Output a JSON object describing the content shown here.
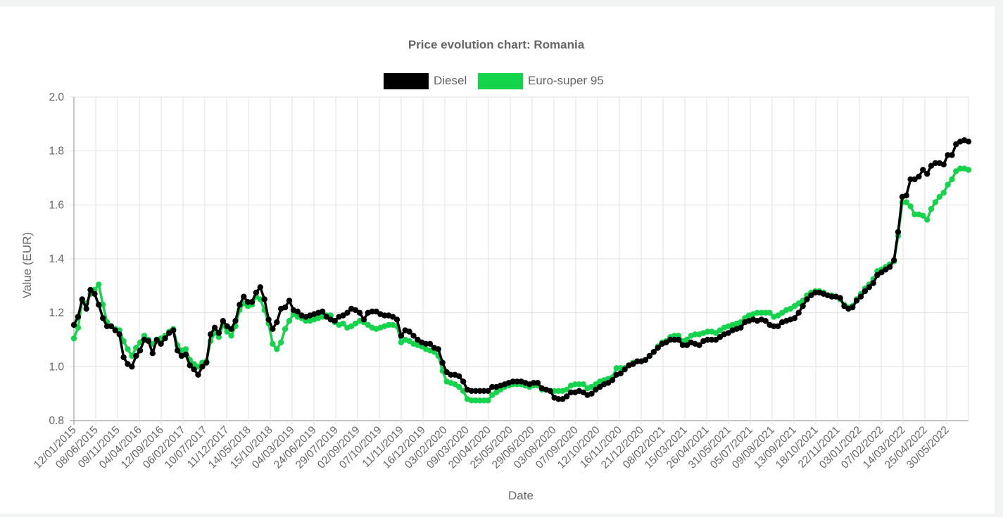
{
  "chart_data": {
    "type": "line",
    "title": "Price evolution chart: Romania",
    "xlabel": "Date",
    "ylabel": "Value (EUR)",
    "ylim": [
      0.8,
      2.0
    ],
    "y_ticks": [
      "0.8",
      "1.0",
      "1.2",
      "1.4",
      "1.6",
      "1.8",
      "2.0"
    ],
    "x_tick_labels": [
      "12/01/2015",
      "08/06/2015",
      "09/11/2015",
      "04/04/2016",
      "12/09/2016",
      "06/02/2017",
      "10/07/2017",
      "11/12/2017",
      "14/05/2018",
      "15/10/2018",
      "04/03/2019",
      "24/06/2019",
      "29/07/2019",
      "02/09/2019",
      "07/10/2019",
      "11/11/2019",
      "16/12/2019",
      "03/02/2020",
      "09/03/2020",
      "20/04/2020",
      "25/05/2020",
      "29/06/2020",
      "03/08/2020",
      "07/09/2020",
      "12/10/2020",
      "16/11/2020",
      "21/12/2020",
      "08/02/2021",
      "15/03/2021",
      "26/04/2021",
      "31/05/2021",
      "05/07/2021",
      "09/08/2021",
      "13/09/2021",
      "18/10/2021",
      "22/11/2021",
      "03/01/2022",
      "07/02/2022",
      "14/03/2022",
      "25/04/2022",
      "30/05/2022"
    ],
    "grid": true,
    "legend_position": "top-center",
    "series": [
      {
        "name": "Diesel",
        "color": "#000000",
        "values": [
          1.155,
          1.185,
          1.25,
          1.215,
          1.285,
          1.27,
          1.23,
          1.18,
          1.15,
          1.15,
          1.135,
          1.12,
          1.035,
          1.01,
          1.0,
          1.04,
          1.06,
          1.1,
          1.095,
          1.05,
          1.1,
          1.085,
          1.105,
          1.125,
          1.135,
          1.06,
          1.04,
          1.045,
          1.005,
          0.99,
          0.97,
          1.0,
          1.015,
          1.12,
          1.145,
          1.125,
          1.17,
          1.15,
          1.14,
          1.17,
          1.23,
          1.26,
          1.24,
          1.24,
          1.275,
          1.295,
          1.25,
          1.175,
          1.14,
          1.165,
          1.215,
          1.22,
          1.245,
          1.21,
          1.205,
          1.19,
          1.185,
          1.19,
          1.195,
          1.2,
          1.205,
          1.185,
          1.175,
          1.17,
          1.185,
          1.19,
          1.2,
          1.215,
          1.21,
          1.2,
          1.175,
          1.2,
          1.205,
          1.205,
          1.195,
          1.19,
          1.19,
          1.185,
          1.175,
          1.115,
          1.135,
          1.13,
          1.115,
          1.1,
          1.09,
          1.085,
          1.085,
          1.07,
          1.065,
          1.015,
          0.98,
          0.97,
          0.97,
          0.965,
          0.945,
          0.915,
          0.91,
          0.91,
          0.91,
          0.91,
          0.91,
          0.925,
          0.925,
          0.93,
          0.935,
          0.94,
          0.945,
          0.945,
          0.945,
          0.94,
          0.935,
          0.94,
          0.94,
          0.92,
          0.915,
          0.91,
          0.885,
          0.88,
          0.88,
          0.89,
          0.905,
          0.905,
          0.91,
          0.905,
          0.895,
          0.9,
          0.915,
          0.925,
          0.935,
          0.94,
          0.95,
          0.97,
          0.975,
          0.99,
          1.005,
          1.01,
          1.02,
          1.02,
          1.025,
          1.04,
          1.055,
          1.07,
          1.085,
          1.09,
          1.1,
          1.1,
          1.1,
          1.08,
          1.08,
          1.09,
          1.085,
          1.08,
          1.095,
          1.1,
          1.1,
          1.1,
          1.11,
          1.12,
          1.125,
          1.135,
          1.14,
          1.145,
          1.165,
          1.17,
          1.175,
          1.17,
          1.175,
          1.17,
          1.155,
          1.15,
          1.15,
          1.165,
          1.17,
          1.175,
          1.18,
          1.2,
          1.225,
          1.25,
          1.265,
          1.275,
          1.275,
          1.27,
          1.265,
          1.26,
          1.26,
          1.255,
          1.225,
          1.215,
          1.22,
          1.245,
          1.26,
          1.28,
          1.295,
          1.31,
          1.34,
          1.35,
          1.36,
          1.37,
          1.395,
          1.5,
          1.63,
          1.635,
          1.695,
          1.695,
          1.705,
          1.73,
          1.715,
          1.745,
          1.755,
          1.755,
          1.75,
          1.785,
          1.785,
          1.825,
          1.835,
          1.84,
          1.835
        ]
      },
      {
        "name": "Euro-super 95",
        "color": "#13d44a",
        "values": [
          1.105,
          1.145,
          1.245,
          1.235,
          1.27,
          1.285,
          1.305,
          1.23,
          1.165,
          1.15,
          1.14,
          1.135,
          1.095,
          1.065,
          1.04,
          1.07,
          1.09,
          1.115,
          1.1,
          1.085,
          1.095,
          1.105,
          1.115,
          1.13,
          1.14,
          1.08,
          1.06,
          1.065,
          1.025,
          1.01,
          1.0,
          1.015,
          1.02,
          1.095,
          1.125,
          1.11,
          1.155,
          1.13,
          1.115,
          1.15,
          1.21,
          1.235,
          1.225,
          1.23,
          1.26,
          1.25,
          1.21,
          1.16,
          1.085,
          1.065,
          1.09,
          1.14,
          1.17,
          1.195,
          1.185,
          1.18,
          1.17,
          1.17,
          1.175,
          1.18,
          1.185,
          1.19,
          1.19,
          1.165,
          1.155,
          1.16,
          1.145,
          1.15,
          1.16,
          1.17,
          1.165,
          1.155,
          1.145,
          1.14,
          1.145,
          1.15,
          1.155,
          1.155,
          1.15,
          1.09,
          1.1,
          1.095,
          1.085,
          1.08,
          1.075,
          1.065,
          1.06,
          1.055,
          1.04,
          0.985,
          0.945,
          0.94,
          0.935,
          0.925,
          0.91,
          0.88,
          0.875,
          0.875,
          0.875,
          0.875,
          0.875,
          0.895,
          0.905,
          0.915,
          0.925,
          0.93,
          0.935,
          0.935,
          0.935,
          0.93,
          0.925,
          0.93,
          0.93,
          0.915,
          0.915,
          0.91,
          0.91,
          0.91,
          0.91,
          0.915,
          0.93,
          0.935,
          0.935,
          0.935,
          0.92,
          0.925,
          0.935,
          0.945,
          0.95,
          0.955,
          0.96,
          0.995,
          0.995,
          0.995,
          1.005,
          1.015,
          1.02,
          1.02,
          1.025,
          1.04,
          1.055,
          1.075,
          1.09,
          1.095,
          1.11,
          1.115,
          1.115,
          1.095,
          1.1,
          1.115,
          1.12,
          1.12,
          1.125,
          1.13,
          1.13,
          1.125,
          1.135,
          1.145,
          1.15,
          1.155,
          1.16,
          1.165,
          1.18,
          1.19,
          1.195,
          1.2,
          1.2,
          1.2,
          1.2,
          1.185,
          1.19,
          1.2,
          1.21,
          1.215,
          1.225,
          1.235,
          1.245,
          1.265,
          1.275,
          1.28,
          1.28,
          1.275,
          1.265,
          1.265,
          1.26,
          1.25,
          1.23,
          1.22,
          1.225,
          1.25,
          1.27,
          1.29,
          1.305,
          1.325,
          1.355,
          1.36,
          1.37,
          1.38,
          1.39,
          1.485,
          1.61,
          1.61,
          1.595,
          1.565,
          1.565,
          1.56,
          1.545,
          1.585,
          1.61,
          1.63,
          1.645,
          1.675,
          1.695,
          1.725,
          1.735,
          1.735,
          1.73
        ]
      }
    ]
  }
}
